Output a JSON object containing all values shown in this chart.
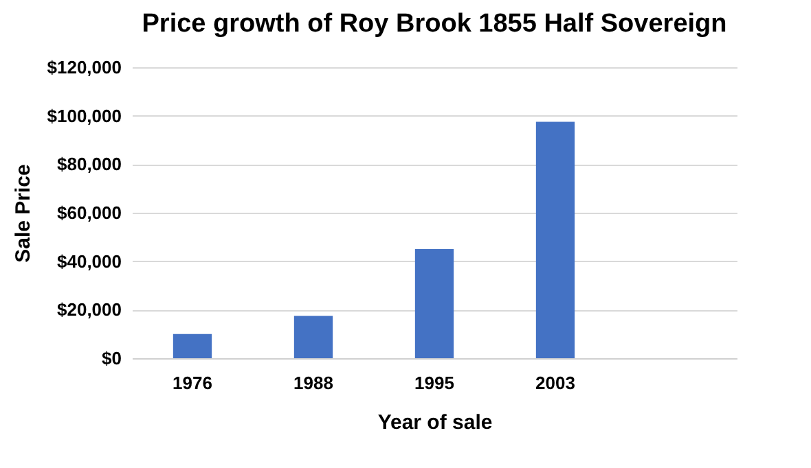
{
  "chart_data": {
    "type": "bar",
    "title": "Price growth of Roy Brook 1855 Half Sovereign",
    "xlabel": "Year of sale",
    "ylabel": "Sale Price",
    "categories": [
      "1976",
      "1988",
      "1995",
      "2003",
      null
    ],
    "values": [
      10000,
      17500,
      45000,
      97500,
      null
    ],
    "color": "#4472c4",
    "ylim": [
      0,
      120000
    ],
    "yticks": [
      {
        "value": 0,
        "label": "$0"
      },
      {
        "value": 20000,
        "label": "$20,000"
      },
      {
        "value": 40000,
        "label": "$40,000"
      },
      {
        "value": 60000,
        "label": "$60,000"
      },
      {
        "value": 80000,
        "label": "$80,000"
      },
      {
        "value": 100000,
        "label": "$100,000"
      },
      {
        "value": 120000,
        "label": "$120,000"
      }
    ],
    "grid": "y"
  }
}
